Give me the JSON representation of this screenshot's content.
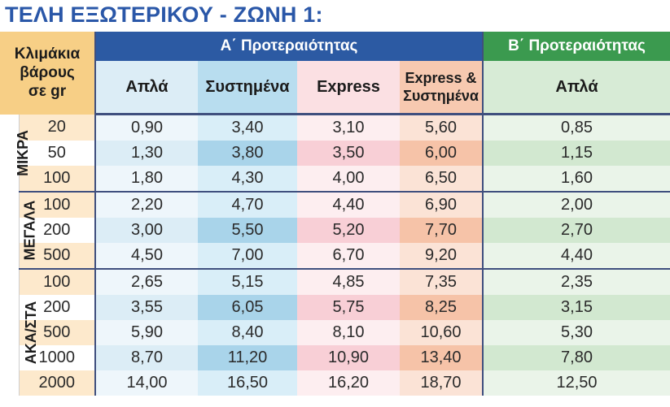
{
  "title": "ΤΕΛΗ ΕΞΩΤΕΡΙΚΟΥ - ΖΩΝΗ 1:",
  "header": {
    "weight_line1": "Κλιμάκια",
    "weight_line2": "βάρους",
    "weight_line3": "σε gr",
    "group_a": "Α΄ Προτεραιότητας",
    "group_b": "Β΄ Προτεραιότητας",
    "col_plain": "Απλά",
    "col_registered": "Συστημένα",
    "col_express": "Express",
    "col_express_reg_1": "Express &",
    "col_express_reg_2": "Συστημένα",
    "col_b_plain": "Απλά"
  },
  "colors": {
    "title": "#2a57a8",
    "group_a_header": "#2c5aa3",
    "group_b_header": "#3b9a4f",
    "weight_header": "#f7cf86"
  },
  "categories": [
    {
      "label": "ΜΙΚΡΑ",
      "rows": [
        {
          "weight": "20",
          "a_plain": "0,90",
          "a_registered": "3,40",
          "a_express": "3,10",
          "a_express_reg": "5,60",
          "b_plain": "0,85"
        },
        {
          "weight": "50",
          "a_plain": "1,30",
          "a_registered": "3,80",
          "a_express": "3,50",
          "a_express_reg": "6,00",
          "b_plain": "1,15"
        },
        {
          "weight": "100",
          "a_plain": "1,80",
          "a_registered": "4,30",
          "a_express": "4,00",
          "a_express_reg": "6,50",
          "b_plain": "1,60"
        }
      ]
    },
    {
      "label": "ΜΕΓΑΛΑ",
      "rows": [
        {
          "weight": "100",
          "a_plain": "2,20",
          "a_registered": "4,70",
          "a_express": "4,40",
          "a_express_reg": "6,90",
          "b_plain": "2,00"
        },
        {
          "weight": "200",
          "a_plain": "3,00",
          "a_registered": "5,50",
          "a_express": "5,20",
          "a_express_reg": "7,70",
          "b_plain": "2,70"
        },
        {
          "weight": "500",
          "a_plain": "4,50",
          "a_registered": "7,00",
          "a_express": "6,70",
          "a_express_reg": "9,20",
          "b_plain": "4,40"
        }
      ]
    },
    {
      "label": "ΑΚΑ/ΣΤΑ",
      "rows": [
        {
          "weight": "100",
          "a_plain": "2,65",
          "a_registered": "5,15",
          "a_express": "4,85",
          "a_express_reg": "7,35",
          "b_plain": "2,35"
        },
        {
          "weight": "200",
          "a_plain": "3,55",
          "a_registered": "6,05",
          "a_express": "5,75",
          "a_express_reg": "8,25",
          "b_plain": "3,15"
        },
        {
          "weight": "500",
          "a_plain": "5,90",
          "a_registered": "8,40",
          "a_express": "8,10",
          "a_express_reg": "10,60",
          "b_plain": "5,30"
        },
        {
          "weight": "1000",
          "a_plain": "8,70",
          "a_registered": "11,20",
          "a_express": "10,90",
          "a_express_reg": "13,40",
          "b_plain": "7,80"
        },
        {
          "weight": "2000",
          "a_plain": "14,00",
          "a_registered": "16,50",
          "a_express": "16,20",
          "a_express_reg": "18,70",
          "b_plain": "12,50"
        }
      ]
    }
  ]
}
